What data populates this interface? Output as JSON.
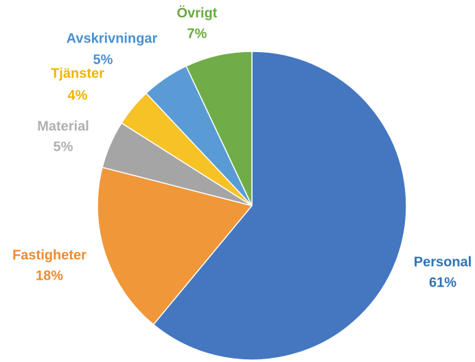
{
  "chart_data": {
    "type": "pie",
    "categories": [
      "Personal",
      "Fastigheter",
      "Material",
      "Tjänster",
      "Avskrivningar",
      "Övrigt"
    ],
    "values": [
      61,
      18,
      5,
      4,
      5,
      7
    ],
    "value_labels": [
      "61%",
      "18%",
      "5%",
      "4%",
      "5%",
      "7%"
    ],
    "colors": [
      "#4477c0",
      "#f0973a",
      "#a5a5a5",
      "#f7c226",
      "#5b9bd5",
      "#70ad47"
    ],
    "label_colors": [
      "#2e74b5",
      "#ed8b2e",
      "#b0b0b0",
      "#f0b400",
      "#4a90d0",
      "#6aaa3c"
    ]
  }
}
